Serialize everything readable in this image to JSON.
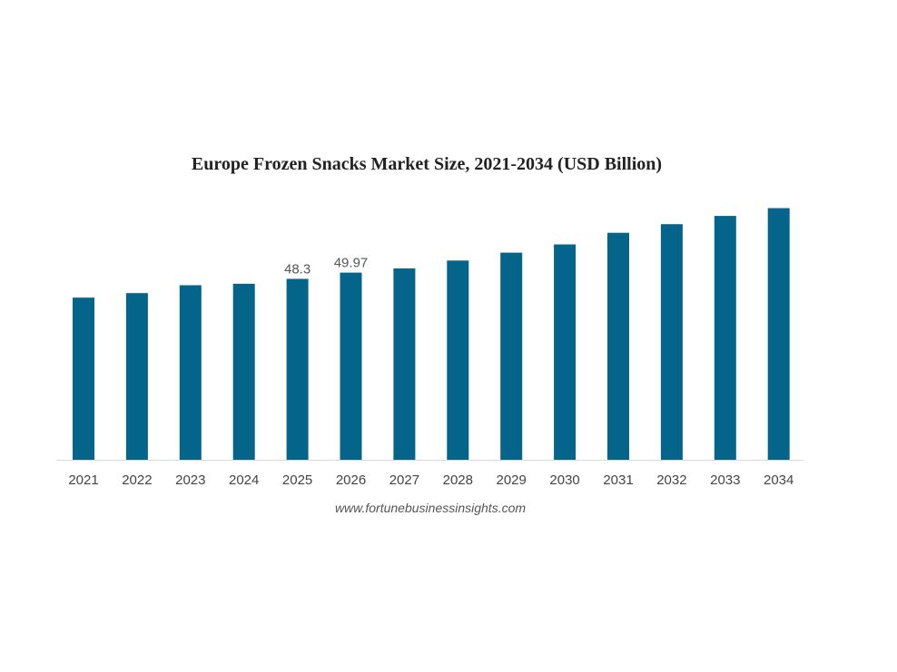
{
  "chart_data": {
    "type": "bar",
    "title": "Europe Frozen Snacks Market Size, 2021-2034 (USD Billion)",
    "source": "www.fortunebusinessinsights.com",
    "categories": [
      "2021",
      "2022",
      "2023",
      "2024",
      "2025",
      "2026",
      "2027",
      "2028",
      "2029",
      "2030",
      "2031",
      "2032",
      "2033",
      "2034"
    ],
    "values": [
      43.3,
      44.5,
      46.6,
      47.0,
      48.3,
      49.97,
      51.1,
      53.2,
      55.3,
      57.5,
      60.6,
      62.9,
      65.1,
      67.2
    ],
    "data_labels": [
      null,
      null,
      null,
      null,
      "48.3",
      "49.97",
      null,
      null,
      null,
      null,
      null,
      null,
      null,
      null
    ],
    "bar_color": "#04648a",
    "xlabel": "",
    "ylabel": "",
    "ylim": [
      0,
      70
    ],
    "grid": false,
    "legend": "none"
  }
}
